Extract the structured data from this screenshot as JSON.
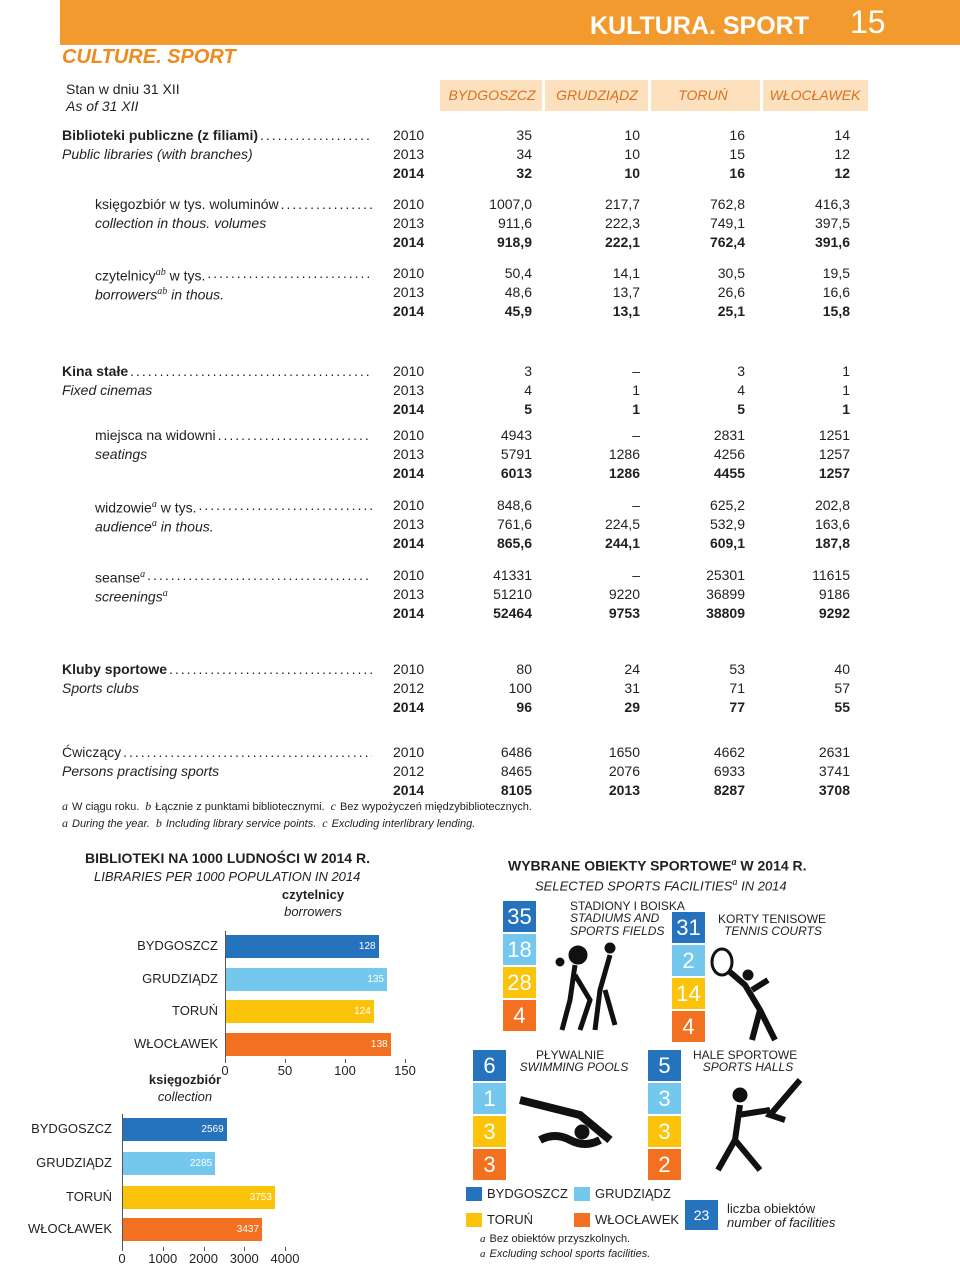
{
  "header": {
    "title_pl": "KULTURA. SPORT",
    "page": "15",
    "title_en": "CULTURE. SPORT"
  },
  "stan": {
    "pl": "Stan w dniu 31 XII",
    "en": "As of 31 XII"
  },
  "table": {
    "columns": [
      "BYDGOSZCZ",
      "GRUDZIĄDZ",
      "TORUŃ",
      "WŁOCŁAWEK"
    ],
    "sections": [
      {
        "label_pl": [
          {
            "t": "Biblioteki publiczne (z filiami)"
          }
        ],
        "label_en": [
          {
            "t": "Public libraries (with branches)"
          }
        ],
        "rows": [
          [
            "2010",
            "35",
            "10",
            "16",
            "14"
          ],
          [
            "2013",
            "34",
            "10",
            "15",
            "12"
          ],
          [
            "2014",
            "32",
            "10",
            "16",
            "12"
          ]
        ]
      },
      {
        "label_pl": [
          {
            "t": "księgozbiór w tys. woluminów"
          }
        ],
        "label_en": [
          {
            "t": "collection in thous. volumes"
          }
        ],
        "rows": [
          [
            "2010",
            "1007,0",
            "217,7",
            "762,8",
            "416,3"
          ],
          [
            "2013",
            "911,6",
            "222,3",
            "749,1",
            "397,5"
          ],
          [
            "2014",
            "918,9",
            "222,1",
            "762,4",
            "391,6"
          ]
        ]
      },
      {
        "label_pl": [
          {
            "t": "czytelnicy"
          },
          {
            "sup": "ab"
          },
          {
            "t": " w tys."
          }
        ],
        "label_en": [
          {
            "t": "borrowers"
          },
          {
            "sup": "ab"
          },
          {
            "t": " in thous."
          }
        ],
        "rows": [
          [
            "2010",
            "50,4",
            "14,1",
            "30,5",
            "19,5"
          ],
          [
            "2013",
            "48,6",
            "13,7",
            "26,6",
            "16,6"
          ],
          [
            "2014",
            "45,9",
            "13,1",
            "25,1",
            "15,8"
          ]
        ]
      },
      {
        "label_pl": [
          {
            "t": "Kina stałe"
          }
        ],
        "label_en": [
          {
            "t": "Fixed cinemas"
          }
        ],
        "rows": [
          [
            "2010",
            "3",
            "–",
            "3",
            "1"
          ],
          [
            "2013",
            "4",
            "1",
            "4",
            "1"
          ],
          [
            "2014",
            "5",
            "1",
            "5",
            "1"
          ]
        ]
      },
      {
        "label_pl": [
          {
            "t": "miejsca na widowni"
          }
        ],
        "label_en": [
          {
            "t": "seatings"
          }
        ],
        "rows": [
          [
            "2010",
            "4943",
            "–",
            "2831",
            "1251"
          ],
          [
            "2013",
            "5791",
            "1286",
            "4256",
            "1257"
          ],
          [
            "2014",
            "6013",
            "1286",
            "4455",
            "1257"
          ]
        ]
      },
      {
        "label_pl": [
          {
            "t": "widzowie"
          },
          {
            "sup": "a"
          },
          {
            "t": " w tys."
          }
        ],
        "label_en": [
          {
            "t": "audience"
          },
          {
            "sup": "a"
          },
          {
            "t": " in thous."
          }
        ],
        "rows": [
          [
            "2010",
            "848,6",
            "–",
            "625,2",
            "202,8"
          ],
          [
            "2013",
            "761,6",
            "224,5",
            "532,9",
            "163,6"
          ],
          [
            "2014",
            "865,6",
            "244,1",
            "609,1",
            "187,8"
          ]
        ]
      },
      {
        "label_pl": [
          {
            "t": "seanse"
          },
          {
            "sup": "a"
          }
        ],
        "label_en": [
          {
            "t": "screenings"
          },
          {
            "sup": "a"
          }
        ],
        "rows": [
          [
            "2010",
            "41331",
            "–",
            "25301",
            "11615"
          ],
          [
            "2013",
            "51210",
            "9220",
            "36899",
            "9186"
          ],
          [
            "2014",
            "52464",
            "9753",
            "38809",
            "9292"
          ]
        ]
      },
      {
        "label_pl": [
          {
            "t": "Kluby sportowe"
          }
        ],
        "label_en": [
          {
            "t": "Sports clubs"
          }
        ],
        "rows": [
          [
            "2010",
            "80",
            "24",
            "53",
            "40"
          ],
          [
            "2012",
            "100",
            "31",
            "71",
            "57"
          ],
          [
            "2014",
            "96",
            "29",
            "77",
            "55"
          ]
        ]
      },
      {
        "label_pl": [
          {
            "t": "Ćwiczący"
          }
        ],
        "label_en": [
          {
            "t": "Persons practising sports"
          }
        ],
        "rows": [
          [
            "2010",
            "6486",
            "1650",
            "4662",
            "2631"
          ],
          [
            "2012",
            "8465",
            "2076",
            "6933",
            "3741"
          ],
          [
            "2014",
            "8105",
            "2013",
            "8287",
            "3708"
          ]
        ]
      }
    ]
  },
  "footnotes": {
    "pl": [
      {
        "mark": "a",
        "text": "W ciągu roku."
      },
      {
        "mark": "b",
        "text": "Łącznie z punktami bibliotecznymi."
      },
      {
        "mark": "c",
        "text": "Bez wypożyczeń międzybibliotecznych."
      }
    ],
    "en": [
      {
        "mark": "a",
        "text": "During the year."
      },
      {
        "mark": "b",
        "text": "Including library service points."
      },
      {
        "mark": "c",
        "text": "Excluding interlibrary lending."
      }
    ]
  },
  "libraries": {
    "title": "BIBLIOTEKI NA 1000 LUDNOŚCI W 2014 R.",
    "subtitle": "LIBRARIES PER 1000 POPULATION IN 2014"
  },
  "chart_data": [
    {
      "type": "bar",
      "orientation": "horizontal",
      "label_pl": "czytelnicy",
      "label_en": "borrowers",
      "categories": [
        "BYDGOSZCZ",
        "GRUDZIĄDZ",
        "TORUŃ",
        "WŁOCŁAWEK"
      ],
      "values": [
        128,
        135,
        124,
        138
      ],
      "colors": [
        "#2573bd",
        "#74c8ee",
        "#fcc30b",
        "#f37021"
      ],
      "xlim": [
        0,
        150
      ],
      "xticks": [
        0,
        50,
        100,
        150
      ]
    },
    {
      "type": "bar",
      "orientation": "horizontal",
      "label_pl": "księgozbiór",
      "label_en": "collection",
      "categories": [
        "BYDGOSZCZ",
        "GRUDZIĄDZ",
        "TORUŃ",
        "WŁOCŁAWEK"
      ],
      "values": [
        2569,
        2285,
        3753,
        3437
      ],
      "colors": [
        "#2573bd",
        "#74c8ee",
        "#fcc30b",
        "#f37021"
      ],
      "xlim": [
        0,
        4000
      ],
      "xticks": [
        0,
        1000,
        2000,
        3000,
        4000
      ]
    }
  ],
  "facilities": {
    "title": [
      {
        "t": "WYBRANE OBIEKTY SPORTOWE"
      },
      {
        "sup": "a"
      },
      {
        "t": " W 2014 R."
      }
    ],
    "subtitle": [
      {
        "t": "SELECTED SPORTS FACILITIES"
      },
      {
        "sup": "a"
      },
      {
        "t": " IN 2014"
      }
    ],
    "groups": [
      {
        "pl": "STADIONY I BOISKA",
        "en": "STADIUMS AND SPORTS FIELDS",
        "values": [
          "35",
          "18",
          "28",
          "4"
        ]
      },
      {
        "pl": "KORTY TENISOWE",
        "en": "TENNIS COURTS",
        "values": [
          "31",
          "2",
          "14",
          "4"
        ]
      },
      {
        "pl": "PŁYWALNIE",
        "en": "SWIMMING POOLS",
        "values": [
          "6",
          "1",
          "3",
          "3"
        ]
      },
      {
        "pl": "HALE SPORTOWE",
        "en": "SPORTS HALLS",
        "values": [
          "5",
          "3",
          "3",
          "2"
        ]
      }
    ],
    "legend": [
      {
        "name": "BYDGOSZCZ",
        "color": "#2573bd"
      },
      {
        "name": "GRUDZIĄDZ",
        "color": "#74c8ee"
      },
      {
        "name": "TORUŃ",
        "color": "#fcc30b"
      },
      {
        "name": "WŁOCŁAWEK",
        "color": "#f37021"
      }
    ],
    "key": {
      "value": "23",
      "pl": "liczba obiektów",
      "en": "number of facilities"
    },
    "footnote": {
      "pl": {
        "mark": "a",
        "text": "Bez obiektów przyszkolnych."
      },
      "en": {
        "mark": "a",
        "text": "Excluding school sports facilities."
      }
    }
  }
}
